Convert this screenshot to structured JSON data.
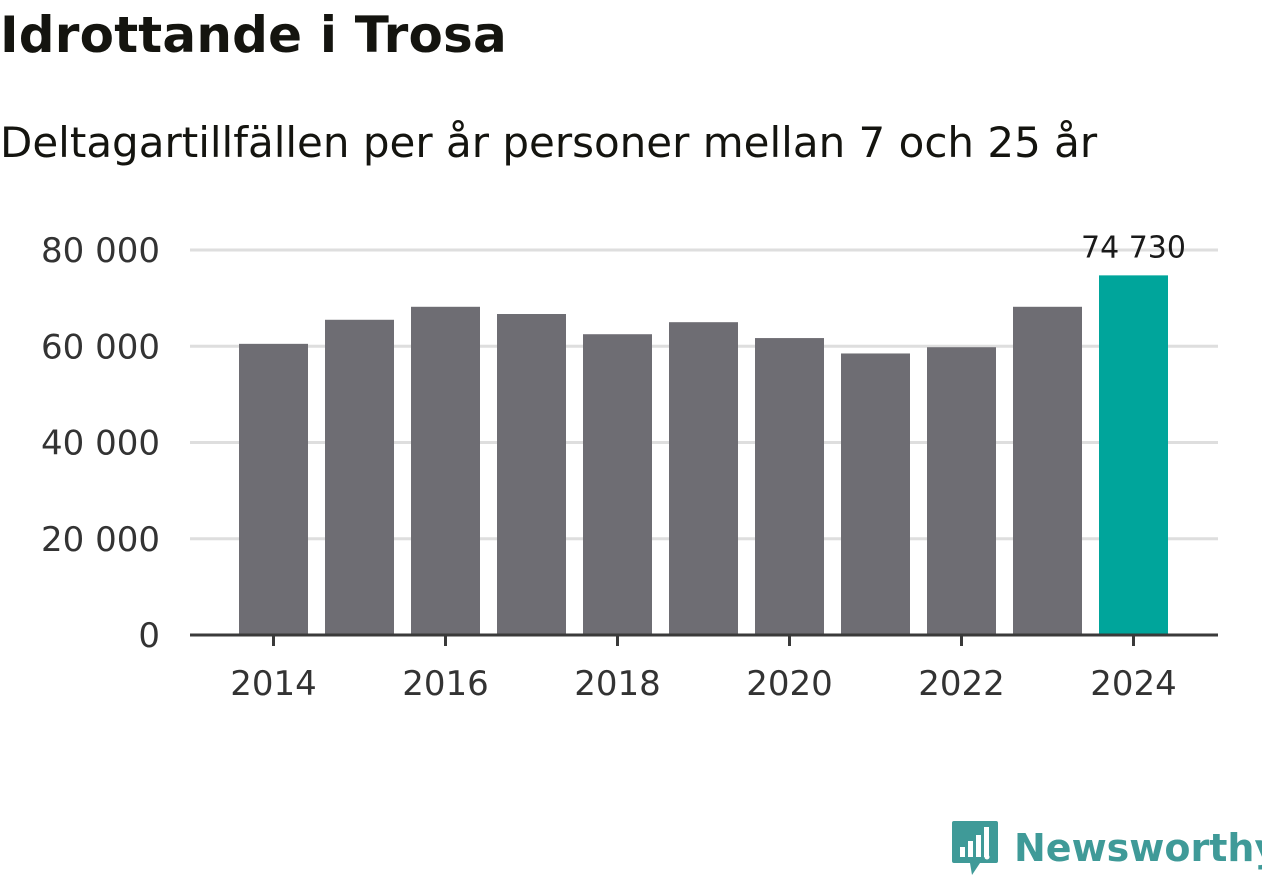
{
  "title": "Idrottande i Trosa",
  "subtitle": "Deltagartillfällen per år personer mellan 7 och 25 år",
  "brand": {
    "label": "Newsworthy",
    "icon": "bar-chart-speech-bubble-icon",
    "color": "#3f9a98"
  },
  "chart_data": {
    "type": "bar",
    "title": "Idrottande i Trosa",
    "subtitle": "Deltagartillfällen per år personer mellan 7 och 25 år",
    "xlabel": "",
    "ylabel": "",
    "categories": [
      "2014",
      "2015",
      "2016",
      "2017",
      "2018",
      "2019",
      "2020",
      "2021",
      "2022",
      "2023",
      "2024"
    ],
    "values": [
      60500,
      65500,
      68200,
      66700,
      62500,
      65000,
      61700,
      58500,
      59800,
      68200,
      74730
    ],
    "ylim": [
      0,
      80000
    ],
    "yticks": [
      0,
      20000,
      40000,
      60000,
      80000
    ],
    "ytick_labels": [
      "0",
      "20 000",
      "40 000",
      "60 000",
      "80 000"
    ],
    "xtick_labels": [
      "2014",
      "2016",
      "2018",
      "2020",
      "2022",
      "2024"
    ],
    "highlight_index": 10,
    "highlight_label": "74 730",
    "grid": true,
    "colors": {
      "bar": "#6e6d73",
      "highlight": "#00a59b",
      "grid": "#dedede",
      "axis": "#3a3a3a",
      "text": "#333333"
    }
  }
}
